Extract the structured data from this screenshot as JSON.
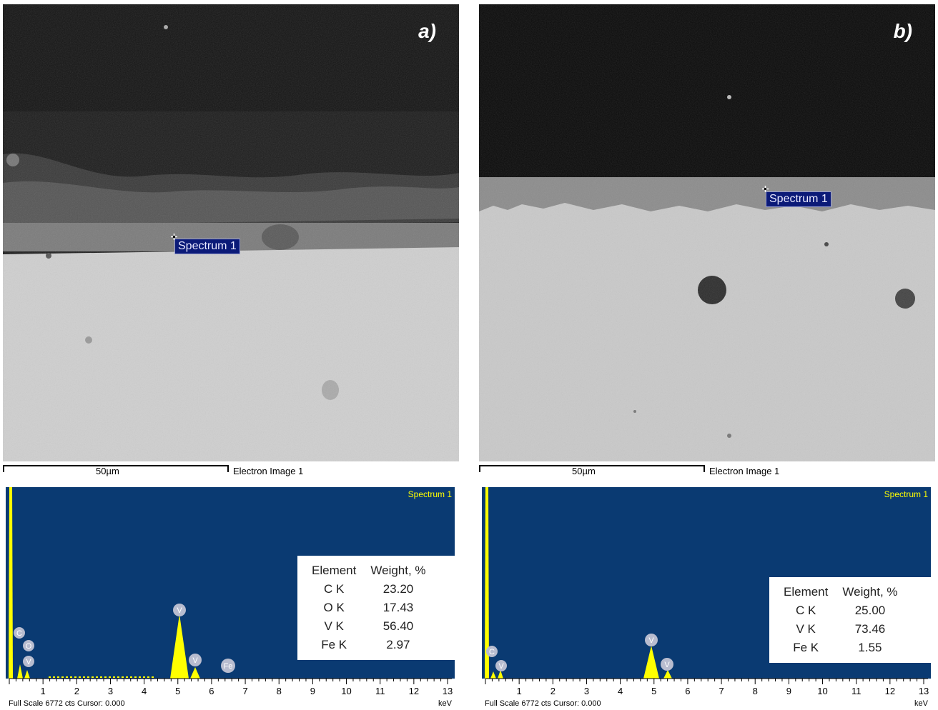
{
  "panels": [
    {
      "letter": "a)",
      "spectrum_label": "Spectrum 1",
      "scale_text": "50µm",
      "image_caption": "Electron Image 1",
      "eds": {
        "title": "Spectrum 1",
        "footer": "Full Scale 6772 cts Cursor: 0.000",
        "unit": "keV",
        "ticks": [
          "1",
          "2",
          "3",
          "4",
          "5",
          "6",
          "7",
          "8",
          "9",
          "10",
          "11",
          "12",
          "13"
        ],
        "peak_labels": [
          "C",
          "O",
          "V",
          "V",
          "V",
          "Fe"
        ],
        "table": {
          "headers": [
            "Element",
            "Weight, %"
          ],
          "rows": [
            [
              "C K",
              "23.20"
            ],
            [
              "O K",
              "17.43"
            ],
            [
              "V K",
              "56.40"
            ],
            [
              "Fe K",
              "2.97"
            ]
          ]
        }
      }
    },
    {
      "letter": "b)",
      "spectrum_label": "Spectrum 1",
      "scale_text": "50µm",
      "image_caption": "Electron Image 1",
      "eds": {
        "title": "Spectrum 1",
        "footer": "Full Scale 6772 cts Cursor: 0.000",
        "unit": "keV",
        "ticks": [
          "1",
          "2",
          "3",
          "4",
          "5",
          "6",
          "7",
          "8",
          "9",
          "10",
          "11",
          "12",
          "13"
        ],
        "peak_labels": [
          "C",
          "V",
          "V",
          "V"
        ],
        "table": {
          "headers": [
            "Element",
            "Weight, %"
          ],
          "rows": [
            [
              "C K",
              "25.00"
            ],
            [
              "V K",
              "73.46"
            ],
            [
              "Fe K",
              "1.55"
            ]
          ]
        }
      }
    }
  ],
  "colors": {
    "eds_background": "#0a3a72",
    "peak_fill": "#ffff00",
    "label_background": "#0b1a78"
  }
}
